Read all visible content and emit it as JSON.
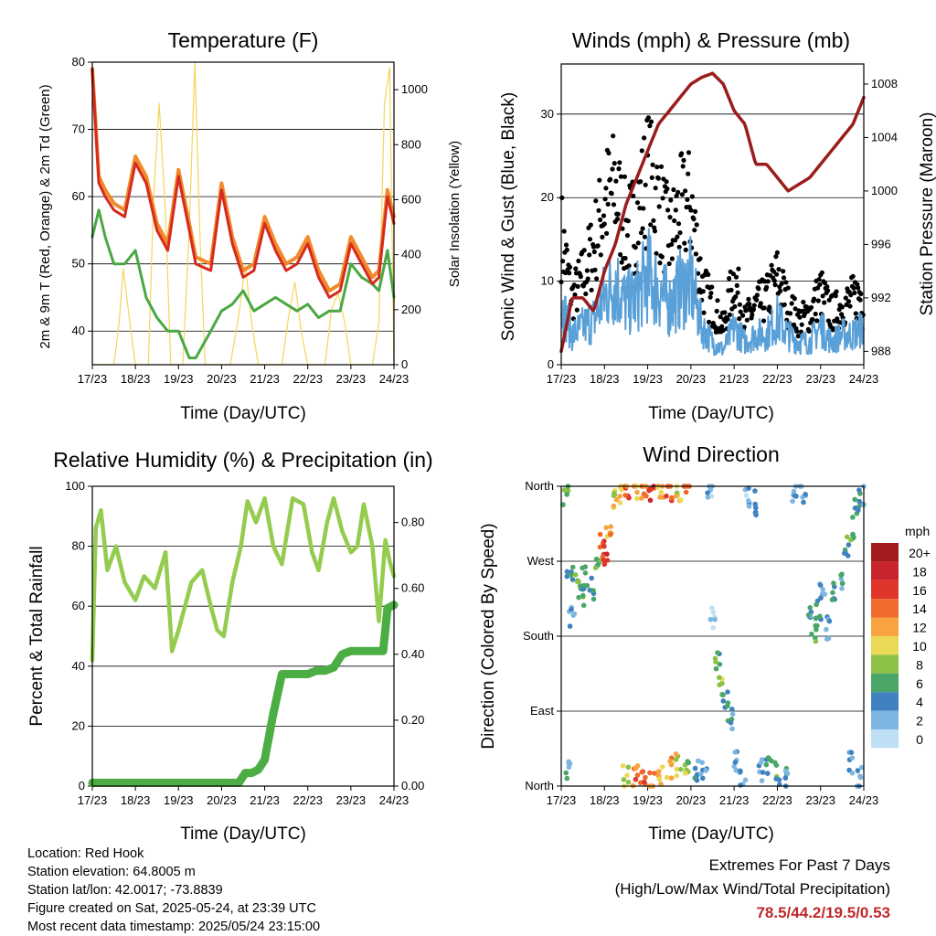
{
  "time_ticks": [
    "17/23",
    "18/23",
    "19/23",
    "20/23",
    "21/23",
    "22/23",
    "23/23",
    "24/23"
  ],
  "info": {
    "location": "Location: Red Hook",
    "elevation": "Station elevation: 64.8005 m",
    "latlon": "Station lat/lon: 42.0017; -73.8839",
    "created": "Figure created on Sat, 2025-05-24, at 23:39 UTC",
    "recent": "Most recent data timestamp: 2025/05/24 23:15:00"
  },
  "extremes": {
    "line1": "Extremes For Past 7 Days",
    "line2": "(High/Low/Max Wind/Total Precipitation)",
    "values": "78.5/44.2/19.5/0.53"
  },
  "colors": {
    "temp2m": "#d62a1f",
    "temp9m": "#f08a2a",
    "dewpoint": "#4aa843",
    "solar": "#f3d65a",
    "gust": "#000000",
    "wind": "#5aa0d8",
    "pressure": "#9b1c1c",
    "rh": "#93cc4e",
    "precip": "#4cad44"
  },
  "chart_data": [
    {
      "type": "line",
      "title": "Temperature (F)",
      "xlabel": "Time (Day/UTC)",
      "ylabel": "2m & 9m T (Red, Orange) & 2m Td (Green)",
      "y2label": "Solar Insolation (Yellow)",
      "ylim": [
        35,
        80
      ],
      "y2lim": [
        0,
        1100
      ],
      "yticks": [
        "40",
        "50",
        "60",
        "70",
        "80"
      ],
      "y2ticks": [
        "0",
        "200",
        "400",
        "600",
        "800",
        "1000"
      ],
      "xlim": [
        0,
        7
      ],
      "x": [
        0,
        0.15,
        0.3,
        0.5,
        0.75,
        1.0,
        1.25,
        1.5,
        1.75,
        2.0,
        2.25,
        2.4,
        2.75,
        3.0,
        3.25,
        3.5,
        3.75,
        4.0,
        4.25,
        4.5,
        4.75,
        5.0,
        5.25,
        5.5,
        5.75,
        6.0,
        6.25,
        6.5,
        6.65,
        6.85,
        7.0
      ],
      "series": [
        {
          "values": [
            79,
            62,
            60,
            58,
            57,
            65,
            62,
            55,
            52,
            63,
            55,
            50,
            49,
            61,
            53,
            48,
            49,
            56,
            52,
            49,
            50,
            53,
            48,
            45,
            46,
            53,
            50,
            47,
            48,
            60,
            56
          ]
        },
        {
          "values": [
            79,
            63,
            61,
            59,
            58,
            66,
            63,
            56,
            53,
            64,
            56,
            51,
            50,
            62,
            54,
            49,
            50,
            57,
            53,
            50,
            51,
            54,
            49,
            46,
            47,
            54,
            51,
            48,
            49,
            61,
            57
          ]
        },
        {
          "values": [
            54,
            58,
            54,
            50,
            50,
            52,
            45,
            42,
            40,
            40,
            36,
            36,
            40,
            43,
            44,
            46,
            43,
            44,
            45,
            44,
            43,
            44,
            42,
            43,
            43,
            50,
            48,
            47,
            46,
            52,
            45
          ]
        },
        {
          "x": [
            0,
            0.15,
            0.3,
            0.5,
            0.62,
            0.72,
            0.85,
            1.0,
            1.15,
            1.3,
            1.42,
            1.55,
            1.7,
            1.82,
            1.95,
            2.1,
            2.25,
            2.38,
            2.5,
            2.62,
            2.78,
            3.0,
            3.2,
            3.4,
            3.55,
            3.7,
            3.85,
            4.0,
            4.2,
            4.4,
            4.55,
            4.7,
            4.85,
            5.0,
            5.2,
            5.4,
            5.55,
            5.7,
            5.85,
            6.0,
            6.2,
            6.35,
            6.5,
            6.65,
            6.78,
            6.9,
            7.0
          ],
          "values": [
            0,
            0,
            0,
            0,
            150,
            350,
            180,
            0,
            0,
            0,
            600,
            950,
            550,
            0,
            0,
            0,
            500,
            1100,
            450,
            0,
            0,
            0,
            0,
            180,
            360,
            150,
            0,
            0,
            0,
            0,
            170,
            300,
            120,
            0,
            0,
            0,
            200,
            260,
            160,
            0,
            0,
            0,
            0,
            150,
            950,
            1080,
            0
          ]
        }
      ]
    },
    {
      "type": "scatter",
      "title": "Winds (mph) & Pressure (mb)",
      "xlabel": "Time (Day/UTC)",
      "ylabel": "Sonic Wind & Gust (Blue, Black)",
      "y2label": "Station Pressure (Maroon)",
      "ylim": [
        0,
        36
      ],
      "y2lim": [
        987,
        1009.5
      ],
      "yticks": [
        "0",
        "10",
        "20",
        "30"
      ],
      "y2ticks": [
        "988",
        "992",
        "996",
        "1000",
        "1004",
        "1008"
      ],
      "xlim": [
        0,
        7
      ],
      "x": [
        0,
        0.25,
        0.5,
        0.75,
        1.0,
        1.25,
        1.5,
        1.75,
        2.0,
        2.25,
        2.5,
        2.75,
        3.0,
        3.25,
        3.5,
        3.75,
        4.0,
        4.25,
        4.5,
        4.75,
        5.0,
        5.25,
        5.5,
        5.75,
        6.0,
        6.25,
        6.5,
        6.75,
        7.0
      ],
      "series": [
        {
          "values": [
            18,
            9,
            12,
            16,
            22,
            24,
            18,
            20,
            26,
            22,
            17,
            21,
            22,
            11,
            8,
            5,
            12,
            6,
            8,
            9,
            12,
            8,
            6,
            7,
            10,
            7,
            8,
            9,
            10
          ]
        },
        {
          "values": [
            8,
            4,
            5,
            6,
            9,
            11,
            8,
            9,
            12,
            10,
            8,
            10,
            11,
            5,
            3,
            2,
            5,
            3,
            4,
            4,
            6,
            4,
            3,
            3,
            5,
            3,
            4,
            4,
            5
          ]
        },
        {
          "values": [
            988,
            992,
            992,
            991,
            994,
            996,
            999,
            1001,
            1003,
            1005,
            1006,
            1007,
            1008,
            1008.5,
            1008.8,
            1008,
            1006,
            1005,
            1002,
            1002,
            1001,
            1000,
            1000.5,
            1001,
            1002,
            1003,
            1004,
            1005,
            1007
          ]
        }
      ]
    },
    {
      "type": "line",
      "title": "Relative Humidity (%) & Precipitation (in)",
      "xlabel": "Time (Day/UTC)",
      "ylabel": "Percent & Total Rainfall",
      "ylim": [
        0,
        100
      ],
      "y2lim": [
        0,
        0.91
      ],
      "yticks": [
        "0",
        "20",
        "40",
        "60",
        "80",
        "100"
      ],
      "y2ticks": [
        "0.00",
        "0.20",
        "0.40",
        "0.60",
        "0.80"
      ],
      "xlim": [
        0,
        7
      ],
      "series": [
        {
          "x": [
            0,
            0.08,
            0.2,
            0.35,
            0.55,
            0.75,
            1.0,
            1.2,
            1.45,
            1.7,
            1.85,
            2.0,
            2.3,
            2.55,
            2.75,
            2.9,
            3.05,
            3.25,
            3.45,
            3.6,
            3.8,
            4.0,
            4.2,
            4.4,
            4.65,
            4.9,
            5.1,
            5.25,
            5.45,
            5.6,
            5.8,
            6.0,
            6.15,
            6.3,
            6.5,
            6.65,
            6.8,
            6.9,
            7.0
          ],
          "values": [
            42,
            86,
            92,
            72,
            80,
            68,
            62,
            70,
            66,
            78,
            45,
            52,
            68,
            72,
            60,
            52,
            50,
            68,
            80,
            95,
            88,
            96,
            80,
            74,
            96,
            94,
            78,
            72,
            88,
            96,
            85,
            78,
            80,
            94,
            80,
            55,
            82,
            75,
            70
          ]
        },
        {
          "x": [
            0,
            0.5,
            1.0,
            1.5,
            2.0,
            2.5,
            3.0,
            3.4,
            3.55,
            3.7,
            3.85,
            4.0,
            4.2,
            4.4,
            4.6,
            4.8,
            5.0,
            5.2,
            5.4,
            5.6,
            5.8,
            6.0,
            6.2,
            6.4,
            6.6,
            6.75,
            6.85,
            7.0
          ],
          "values": [
            0.01,
            0.01,
            0.01,
            0.01,
            0.01,
            0.01,
            0.01,
            0.01,
            0.04,
            0.04,
            0.05,
            0.08,
            0.22,
            0.34,
            0.34,
            0.34,
            0.34,
            0.35,
            0.35,
            0.36,
            0.4,
            0.41,
            0.41,
            0.41,
            0.41,
            0.41,
            0.54,
            0.55
          ]
        }
      ]
    },
    {
      "type": "scatter",
      "title": "Wind Direction",
      "xlabel": "Time (Day/UTC)",
      "ylabel": "Direction (Colored By Speed)",
      "ylim": [
        0,
        360
      ],
      "yticks": [
        "North",
        "East",
        "South",
        "West",
        "North"
      ],
      "xlim": [
        0,
        7
      ],
      "legend_title": "mph",
      "legend_labels": [
        "20+",
        "18",
        "16",
        "14",
        "12",
        "10",
        "8",
        "6",
        "4",
        "2",
        "0"
      ],
      "legend_colors": [
        "#a31a1f",
        "#c8242b",
        "#e0352a",
        "#f06a2b",
        "#f8a33f",
        "#ead955",
        "#8cc145",
        "#4aa667",
        "#3f82bf",
        "#7db6e0",
        "#bfe0f4"
      ],
      "points": [
        {
          "x": 0.1,
          "y": 350,
          "s": 6
        },
        {
          "x": 0.15,
          "y": 20,
          "s": 4
        },
        {
          "x": 0.2,
          "y": 260,
          "s": 5
        },
        {
          "x": 0.25,
          "y": 200,
          "s": 3
        },
        {
          "x": 0.4,
          "y": 240,
          "s": 6
        },
        {
          "x": 0.5,
          "y": 230,
          "s": 7
        },
        {
          "x": 0.55,
          "y": 250,
          "s": 5
        },
        {
          "x": 0.7,
          "y": 235,
          "s": 4
        },
        {
          "x": 0.85,
          "y": 270,
          "s": 6
        },
        {
          "x": 0.95,
          "y": 290,
          "s": 15
        },
        {
          "x": 1.0,
          "y": 280,
          "s": 17
        },
        {
          "x": 1.1,
          "y": 300,
          "s": 12
        },
        {
          "x": 1.2,
          "y": 340,
          "s": 10
        },
        {
          "x": 1.35,
          "y": 355,
          "s": 12
        },
        {
          "x": 1.5,
          "y": 358,
          "s": 14
        },
        {
          "x": 1.7,
          "y": 356,
          "s": 11
        },
        {
          "x": 1.9,
          "y": 357,
          "s": 13
        },
        {
          "x": 2.1,
          "y": 358,
          "s": 16
        },
        {
          "x": 2.3,
          "y": 356,
          "s": 12
        },
        {
          "x": 2.5,
          "y": 357,
          "s": 15
        },
        {
          "x": 2.7,
          "y": 355,
          "s": 10
        },
        {
          "x": 2.9,
          "y": 358,
          "s": 13
        },
        {
          "x": 1.5,
          "y": 10,
          "s": 9
        },
        {
          "x": 1.7,
          "y": 15,
          "s": 14
        },
        {
          "x": 1.9,
          "y": 12,
          "s": 16
        },
        {
          "x": 2.1,
          "y": 8,
          "s": 13
        },
        {
          "x": 2.3,
          "y": 15,
          "s": 11
        },
        {
          "x": 2.5,
          "y": 20,
          "s": 12
        },
        {
          "x": 2.7,
          "y": 25,
          "s": 10
        },
        {
          "x": 2.9,
          "y": 30,
          "s": 8
        },
        {
          "x": 3.1,
          "y": 20,
          "s": 4
        },
        {
          "x": 3.3,
          "y": 15,
          "s": 3
        },
        {
          "x": 3.45,
          "y": 355,
          "s": 2
        },
        {
          "x": 3.5,
          "y": 200,
          "s": 1
        },
        {
          "x": 3.6,
          "y": 150,
          "s": 6
        },
        {
          "x": 3.7,
          "y": 120,
          "s": 8
        },
        {
          "x": 3.8,
          "y": 100,
          "s": 5
        },
        {
          "x": 3.9,
          "y": 80,
          "s": 4
        },
        {
          "x": 4.0,
          "y": 30,
          "s": 2
        },
        {
          "x": 4.2,
          "y": 15,
          "s": 3
        },
        {
          "x": 4.3,
          "y": 350,
          "s": 2
        },
        {
          "x": 4.45,
          "y": 340,
          "s": 3
        },
        {
          "x": 4.6,
          "y": 20,
          "s": 4
        },
        {
          "x": 4.8,
          "y": 25,
          "s": 5
        },
        {
          "x": 5.0,
          "y": 15,
          "s": 6
        },
        {
          "x": 5.2,
          "y": 10,
          "s": 4
        },
        {
          "x": 5.4,
          "y": 355,
          "s": 3
        },
        {
          "x": 5.6,
          "y": 350,
          "s": 2
        },
        {
          "x": 5.75,
          "y": 200,
          "s": 4
        },
        {
          "x": 5.85,
          "y": 180,
          "s": 6
        },
        {
          "x": 5.95,
          "y": 210,
          "s": 5
        },
        {
          "x": 6.05,
          "y": 230,
          "s": 4
        },
        {
          "x": 6.15,
          "y": 190,
          "s": 3
        },
        {
          "x": 6.3,
          "y": 230,
          "s": 5
        },
        {
          "x": 6.45,
          "y": 250,
          "s": 4
        },
        {
          "x": 6.6,
          "y": 290,
          "s": 6
        },
        {
          "x": 6.75,
          "y": 310,
          "s": 7
        },
        {
          "x": 6.85,
          "y": 340,
          "s": 5
        },
        {
          "x": 6.95,
          "y": 350,
          "s": 4
        },
        {
          "x": 6.7,
          "y": 30,
          "s": 3
        },
        {
          "x": 6.9,
          "y": 10,
          "s": 2
        }
      ]
    }
  ]
}
